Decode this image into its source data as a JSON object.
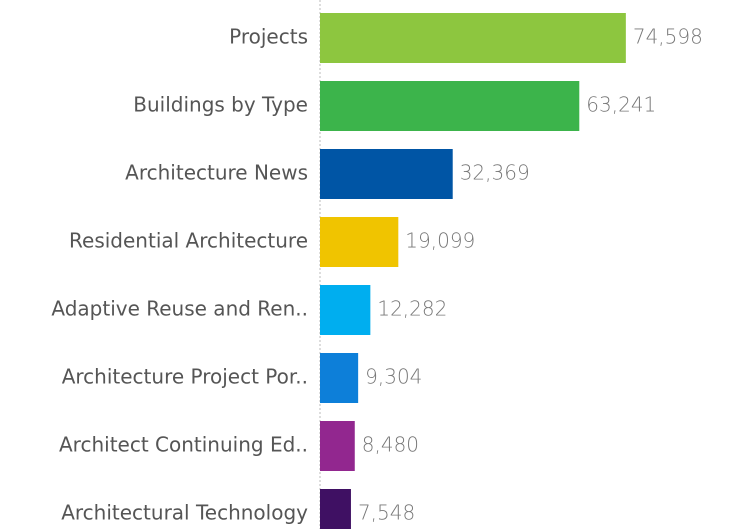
{
  "chart_data": {
    "type": "bar",
    "orientation": "horizontal",
    "categories": [
      "Projects",
      "Buildings by Type",
      "Architecture News",
      "Residential Architecture",
      "Adaptive Reuse and Ren..",
      "Architecture Project Por..",
      "Architect Continuing Ed..",
      "Architectural Technology"
    ],
    "values": [
      74598,
      63241,
      32369,
      19099,
      12282,
      9304,
      8480,
      7548
    ],
    "value_labels": [
      "74,598",
      "63,241",
      "32,369",
      "19,099",
      "12,282",
      "9,304",
      "8,480",
      "7,548"
    ],
    "colors": [
      "#8dc63f",
      "#3cb44b",
      "#0055a5",
      "#f0c400",
      "#00aeef",
      "#0d7fd9",
      "#92278f",
      "#3f1063"
    ],
    "xlim": [
      0,
      100000
    ]
  }
}
